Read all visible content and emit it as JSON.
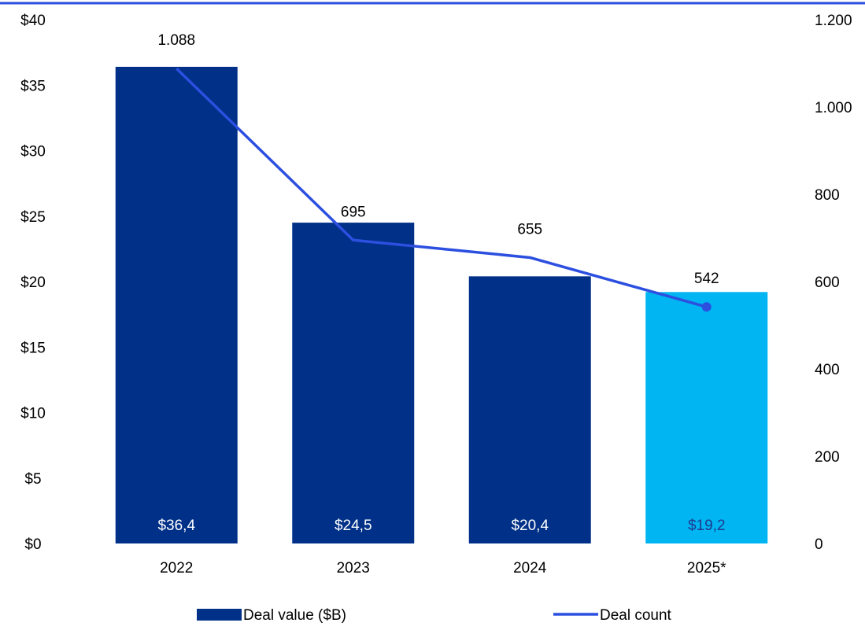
{
  "chart_data": {
    "type": "bar",
    "categories": [
      "2022",
      "2023",
      "2024",
      "2025*"
    ],
    "series": [
      {
        "name": "Deal value ($B)",
        "type": "bar",
        "axis": "left",
        "values": [
          36.4,
          24.5,
          20.4,
          19.2
        ],
        "labels": [
          "$36,4",
          "$24,5",
          "$20,4",
          "$19,2"
        ],
        "colors": [
          "#003087",
          "#003087",
          "#003087",
          "#00B5F1"
        ],
        "label_colors": [
          "#ffffff",
          "#ffffff",
          "#ffffff",
          "#1f3a8f"
        ]
      },
      {
        "name": "Deal count",
        "type": "line",
        "axis": "right",
        "values": [
          1088,
          695,
          655,
          542
        ],
        "labels": [
          "1.088",
          "695",
          "655",
          "542"
        ],
        "color": "#2C4FE0",
        "end_marker": true
      }
    ],
    "left_axis": {
      "ylim": [
        0,
        40
      ],
      "ticks": [
        0,
        5,
        10,
        15,
        20,
        25,
        30,
        35,
        40
      ],
      "tick_labels": [
        "$0",
        "$5",
        "$10",
        "$15",
        "$20",
        "$25",
        "$30",
        "$35",
        "$40"
      ]
    },
    "right_axis": {
      "ylim": [
        0,
        1200
      ],
      "ticks": [
        0,
        200,
        400,
        600,
        800,
        1000,
        1200
      ],
      "tick_labels": [
        "0",
        "200",
        "400",
        "600",
        "800",
        "1.000",
        "1.200"
      ]
    },
    "grid": false,
    "legend": {
      "position": "bottom",
      "entries": [
        {
          "label": "Deal value ($B)",
          "marker": "bar",
          "color": "#003087"
        },
        {
          "label": "Deal count",
          "marker": "line",
          "color": "#2C4FE0"
        }
      ]
    },
    "colors": {
      "top_rule": "#2C4FE0",
      "text": "#000000"
    }
  }
}
